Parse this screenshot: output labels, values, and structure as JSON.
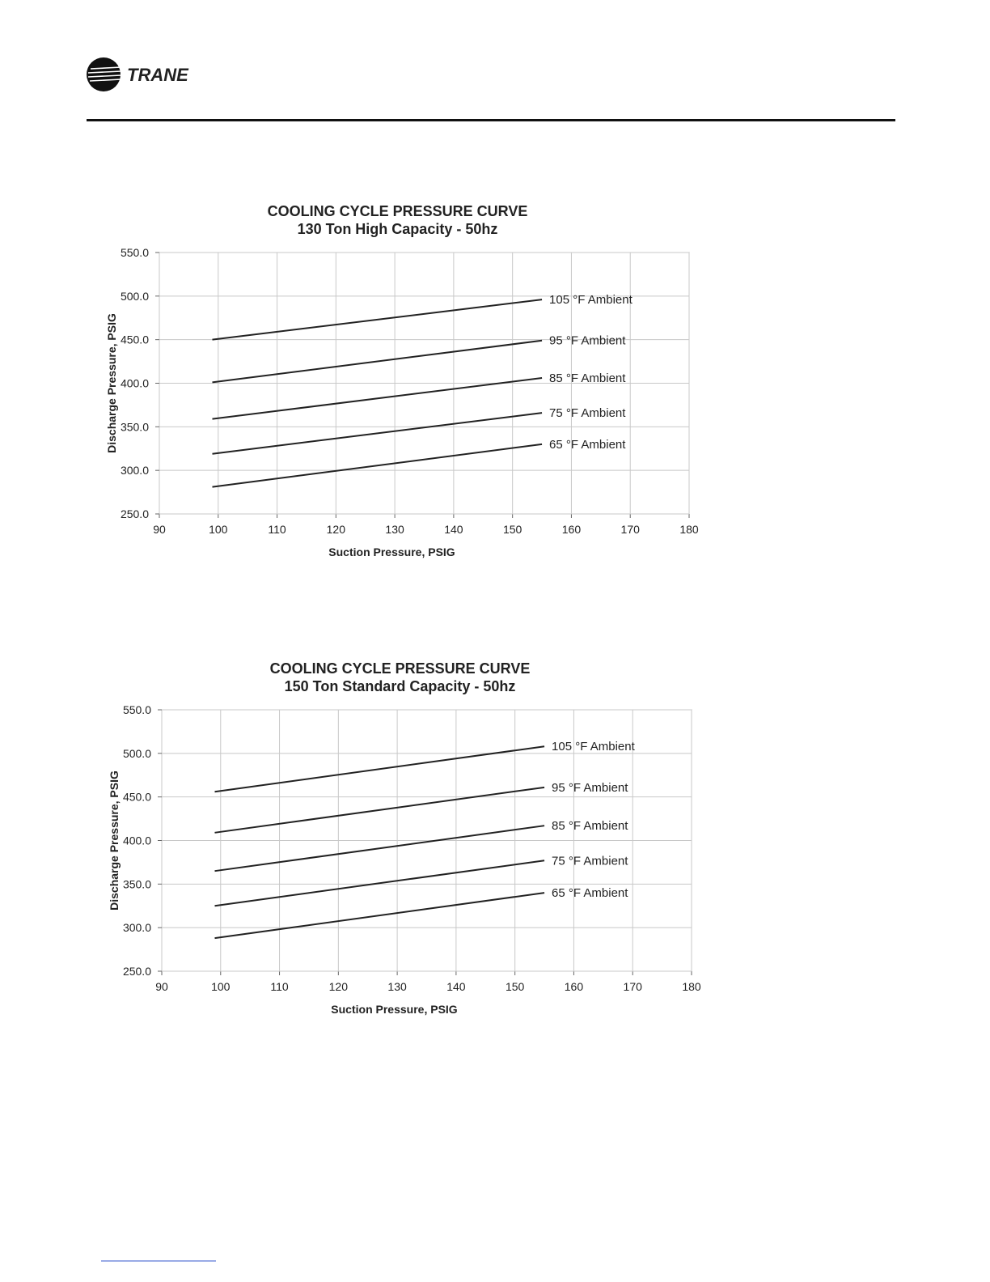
{
  "header": {
    "brand": "TRANE"
  },
  "chart_data": [
    {
      "type": "line",
      "title": "COOLING CYCLE PRESSURE CURVE",
      "subtitle": "130 Ton High Capacity - 50hz",
      "xlabel": "Suction Pressure, PSIG",
      "ylabel": "Discharge Pressure, PSIG",
      "x": [
        99,
        155
      ],
      "series": [
        {
          "name": "105 °F Ambient",
          "color": "#222222",
          "values": [
            450,
            496
          ]
        },
        {
          "name": "95 °F Ambient",
          "color": "#222222",
          "values": [
            401,
            449
          ]
        },
        {
          "name": "85 °F Ambient",
          "color": "#222222",
          "values": [
            359,
            406
          ]
        },
        {
          "name": "75 °F Ambient",
          "color": "#222222",
          "values": [
            319,
            366
          ]
        },
        {
          "name": "65 °F Ambient",
          "color": "#222222",
          "values": [
            281,
            330
          ]
        }
      ],
      "xlim": [
        90,
        180
      ],
      "xticks": [
        90,
        100,
        110,
        120,
        130,
        140,
        150,
        160,
        170,
        180
      ],
      "ylim": [
        250,
        550
      ],
      "yticks": [
        {
          "value": 250,
          "label": "250.0"
        },
        {
          "value": 300,
          "label": "300.0"
        },
        {
          "value": 350,
          "label": "350.0"
        },
        {
          "value": 400,
          "label": "400.0"
        },
        {
          "value": 450,
          "label": "450.0"
        },
        {
          "value": 500,
          "label": "500.0"
        },
        {
          "value": 550,
          "label": "550.0"
        }
      ],
      "grid": true
    },
    {
      "type": "line",
      "title": "COOLING CYCLE PRESSURE CURVE",
      "subtitle": "150 Ton Standard Capacity - 50hz",
      "xlabel": "Suction Pressure, PSIG",
      "ylabel": "Discharge Pressure, PSIG",
      "x": [
        99,
        155
      ],
      "series": [
        {
          "name": "105 °F Ambient",
          "color": "#222222",
          "values": [
            456,
            508
          ]
        },
        {
          "name": "95 °F Ambient",
          "color": "#222222",
          "values": [
            409,
            461
          ]
        },
        {
          "name": "85 °F Ambient",
          "color": "#222222",
          "values": [
            365,
            417
          ]
        },
        {
          "name": "75 °F Ambient",
          "color": "#222222",
          "values": [
            325,
            377
          ]
        },
        {
          "name": "65 °F Ambient",
          "color": "#222222",
          "values": [
            288,
            340
          ]
        }
      ],
      "xlim": [
        90,
        180
      ],
      "xticks": [
        90,
        100,
        110,
        120,
        130,
        140,
        150,
        160,
        170,
        180
      ],
      "ylim": [
        250,
        550
      ],
      "yticks": [
        {
          "value": 250,
          "label": "250.0"
        },
        {
          "value": 300,
          "label": "300.0"
        },
        {
          "value": 350,
          "label": "350.0"
        },
        {
          "value": 400,
          "label": "400.0"
        },
        {
          "value": 450,
          "label": "450.0"
        },
        {
          "value": 500,
          "label": "500.0"
        },
        {
          "value": 550,
          "label": "550.0"
        }
      ],
      "grid": true
    }
  ]
}
